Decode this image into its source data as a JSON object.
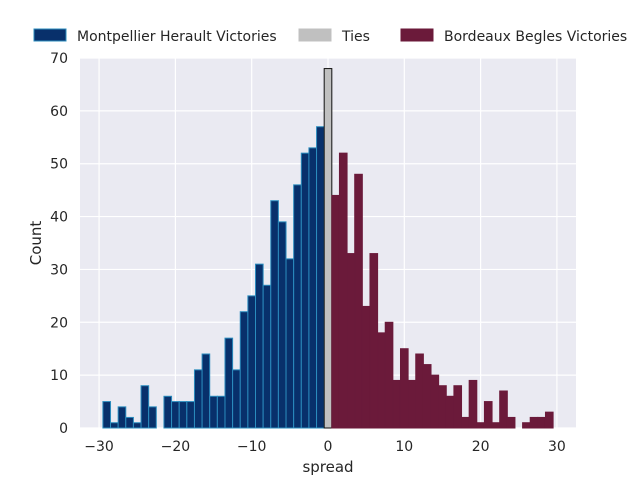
{
  "chart_data": {
    "type": "bar",
    "xlabel": "spread",
    "ylabel": "Count",
    "xlim": [
      -32.5,
      32.5
    ],
    "ylim": [
      0,
      70
    ],
    "xticks": [
      -30,
      -20,
      -10,
      0,
      10,
      20,
      30
    ],
    "yticks": [
      0,
      10,
      20,
      30,
      40,
      50,
      60,
      70
    ],
    "grid": true,
    "legend_position": "top",
    "series": [
      {
        "name": "Montpellier Herault Victories",
        "color": "#08306b",
        "edge_color": "#2b8cbe",
        "x": [
          -29,
          -28,
          -27,
          -26,
          -25,
          -24,
          -23,
          -21,
          -20,
          -19,
          -18,
          -17,
          -16,
          -15,
          -14,
          -13,
          -12,
          -11,
          -10,
          -9,
          -8,
          -7,
          -6,
          -5,
          -4,
          -3,
          -2,
          -1
        ],
        "values": [
          5,
          1,
          4,
          2,
          1,
          8,
          4,
          6,
          5,
          5,
          5,
          11,
          14,
          6,
          6,
          17,
          11,
          22,
          25,
          31,
          27,
          43,
          39,
          32,
          46,
          52,
          53,
          57
        ]
      },
      {
        "name": "Ties",
        "color": "#c0c0c0",
        "edge_color": "#111111",
        "x": [
          0
        ],
        "values": [
          68
        ]
      },
      {
        "name": "Bordeaux Begles Victories",
        "color": "#6b1a3a",
        "edge_color": "#6b1a3a",
        "x": [
          1,
          2,
          3,
          4,
          5,
          6,
          7,
          8,
          9,
          10,
          11,
          12,
          13,
          14,
          15,
          16,
          17,
          18,
          19,
          20,
          21,
          22,
          23,
          24,
          26,
          27,
          28,
          29
        ],
        "values": [
          44,
          52,
          33,
          48,
          23,
          33,
          18,
          20,
          9,
          15,
          9,
          14,
          12,
          10,
          8,
          6,
          8,
          2,
          9,
          1,
          5,
          1,
          7,
          2,
          1,
          2,
          2,
          3
        ]
      }
    ]
  }
}
